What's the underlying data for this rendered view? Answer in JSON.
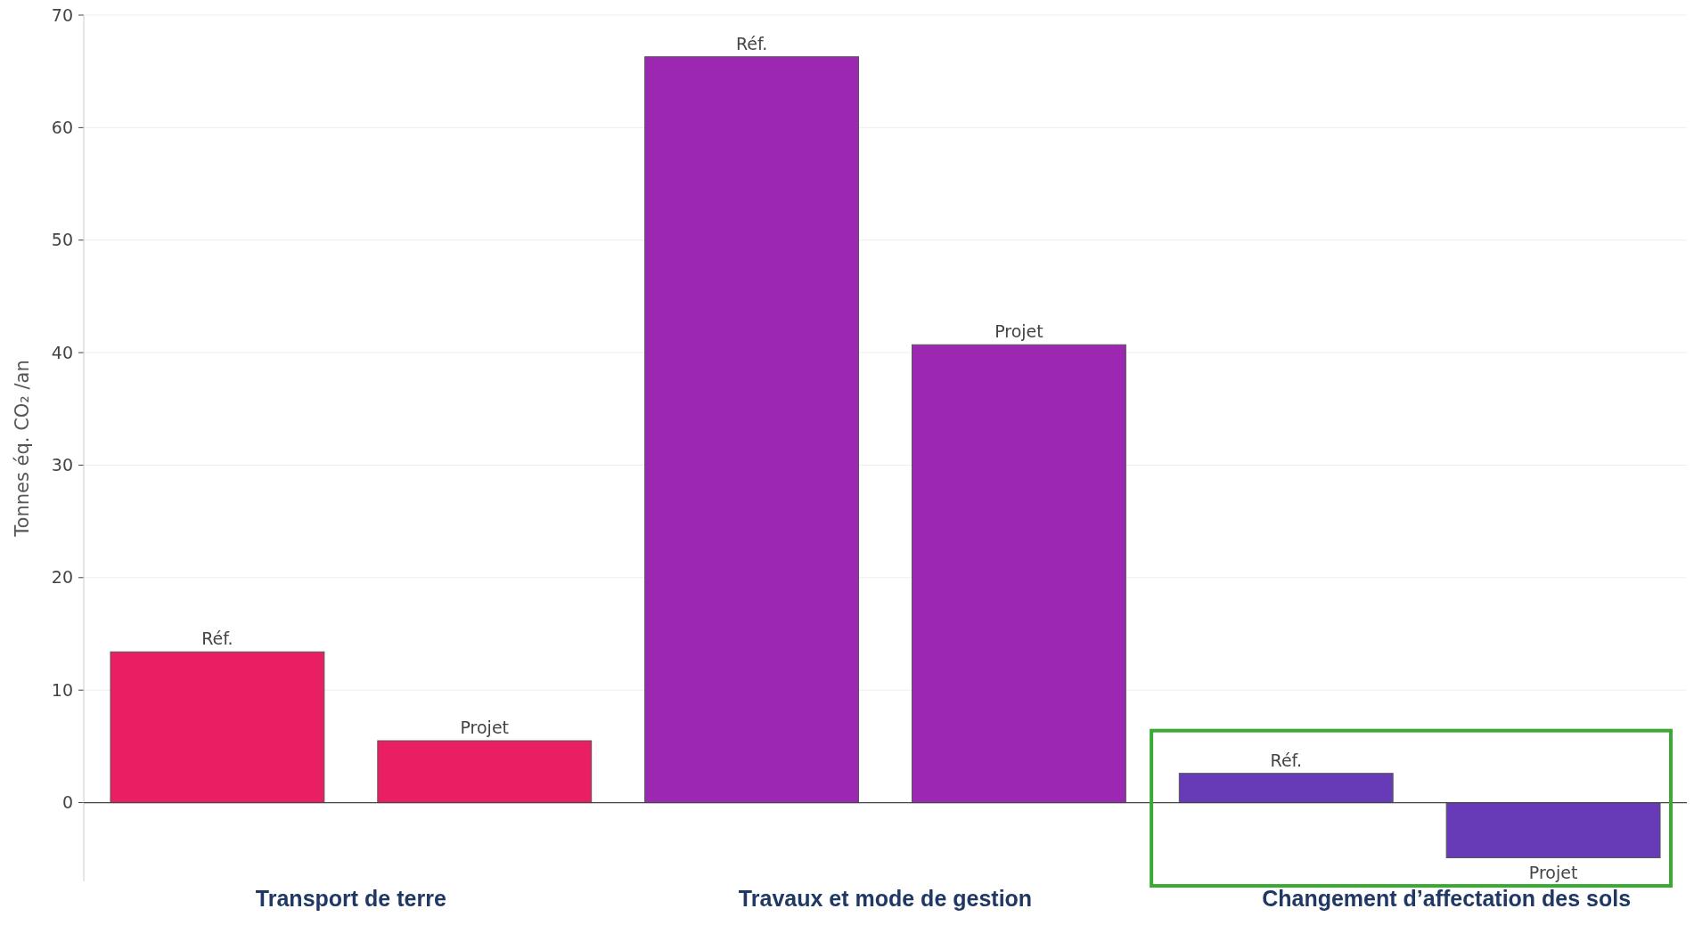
{
  "chart_data": {
    "type": "bar",
    "ylabel": "Tonnes éq. CO₂ /an",
    "categories": [
      "Réf.",
      "Projet",
      "Réf.",
      "Projet",
      "Réf.",
      "Projet"
    ],
    "values": [
      13.4,
      5.5,
      66.3,
      40.7,
      2.6,
      -4.9
    ],
    "colors": [
      "#e91e63",
      "#e91e63",
      "#9c27b0",
      "#9c27b0",
      "#673ab7",
      "#673ab7"
    ],
    "ylim": [
      -7,
      70
    ],
    "yticks": [
      0,
      10,
      20,
      30,
      40,
      50,
      60,
      70
    ],
    "grid": "y",
    "annotations": [
      "Transport de terre",
      "Travaux et mode de gestion",
      "Changement d’affectation des sols"
    ]
  }
}
